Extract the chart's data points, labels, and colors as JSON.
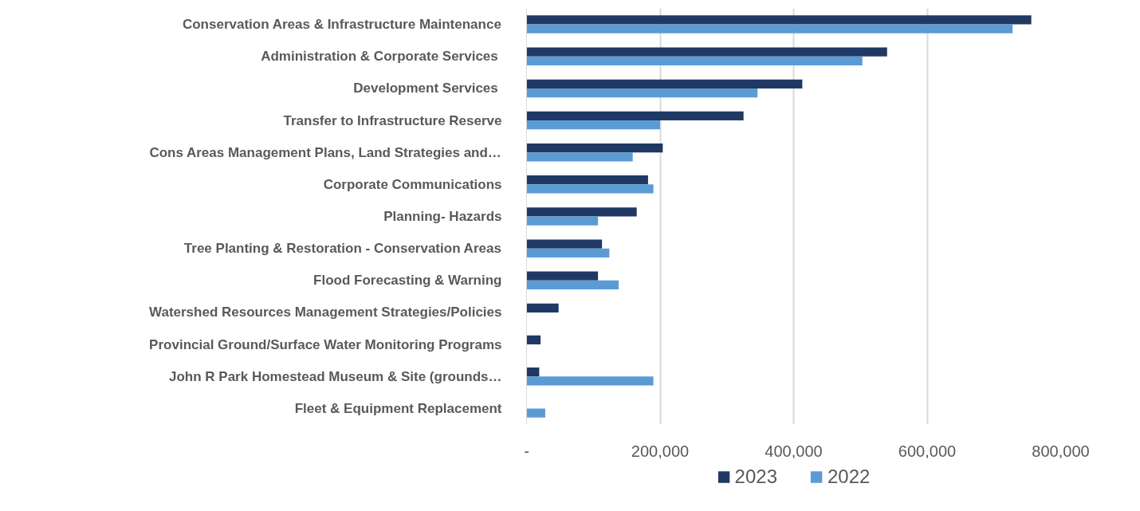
{
  "chart_data": {
    "type": "bar",
    "orientation": "horizontal",
    "categories": [
      "Conservation Areas & Infrastructure Maintenance",
      "Administration  & Corporate Services",
      "Development Services ",
      "Transfer to Infrastructure Reserve",
      "Cons Areas Management Plans, Land Strategies and…",
      "Corporate Communications",
      "Planning- Hazards",
      "Tree Planting & Restoration - Conservation Areas",
      "Flood Forecasting & Warning",
      "Watershed Resources Management Strategies/Policies",
      "Provincial Ground/Surface Water Monitoring Programs",
      "John R Park Homestead Museum & Site (grounds…",
      "Fleet & Equipment Replacement"
    ],
    "series": [
      {
        "name": "2023",
        "color": "#203864",
        "values": [
          756000,
          540000,
          413000,
          325000,
          204000,
          182000,
          165000,
          113000,
          107000,
          48000,
          21000,
          19000,
          null
        ]
      },
      {
        "name": "2022",
        "color": "#5b9bd5",
        "values": [
          728000,
          503000,
          346000,
          200000,
          159000,
          190000,
          107000,
          124000,
          138000,
          null,
          null,
          190000,
          28000
        ]
      }
    ],
    "xlim": [
      0,
      800000
    ],
    "xticks": [
      {
        "value": 0,
        "label": "-"
      },
      {
        "value": 200000,
        "label": "200,000"
      },
      {
        "value": 400000,
        "label": "400,000"
      },
      {
        "value": 600000,
        "label": "600,000"
      },
      {
        "value": 800000,
        "label": "800,000"
      }
    ],
    "grid": "x",
    "legend": "bottom"
  }
}
